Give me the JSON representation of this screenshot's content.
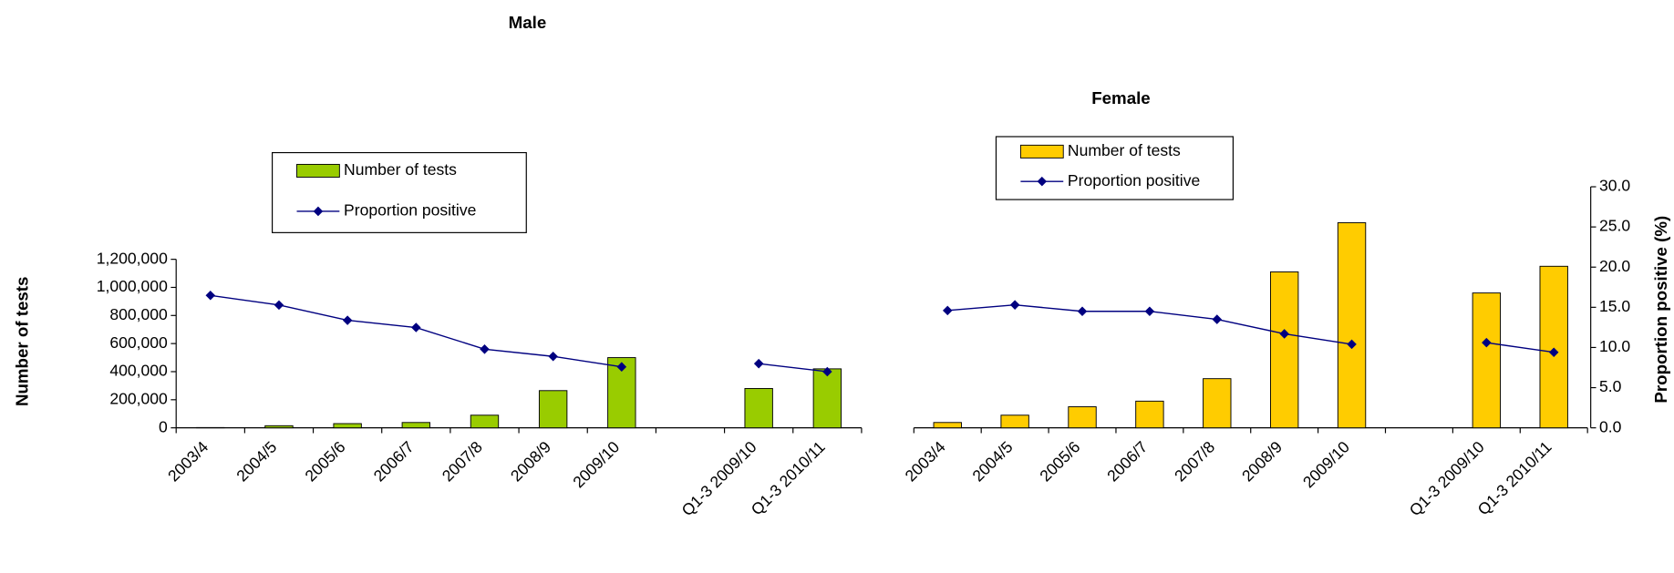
{
  "chart_data": [
    {
      "type": "bar",
      "title": "Male",
      "y_label": "Number of tests",
      "categories": [
        "2003/4",
        "2004/5",
        "2005/6",
        "2006/7",
        "2007/8",
        "2008/9",
        "2009/10",
        null,
        "Q1-3 2009/10",
        "Q1-3 2010/11"
      ],
      "series": [
        {
          "name": "Number of tests",
          "color": "#99cc00",
          "values": [
            2000,
            15000,
            30000,
            38000,
            90000,
            265000,
            500000,
            null,
            280000,
            420000
          ]
        },
        {
          "name": "Proportion positive",
          "color": "#000080",
          "axis": "y2",
          "values": [
            16.5,
            15.3,
            13.4,
            12.5,
            9.8,
            8.9,
            7.6,
            null,
            8.0,
            7.0
          ]
        }
      ],
      "ylim": [
        0,
        1200000
      ],
      "yticks": [
        0,
        {
          "value": 200000,
          "label": "200,000"
        },
        {
          "value": 400000,
          "label": "400,000"
        },
        {
          "value": 600000,
          "label": "600,000"
        },
        {
          "value": 800000,
          "label": "800,000"
        },
        {
          "value": 1000000,
          "label": "1,000,000"
        },
        {
          "value": 1200000,
          "label": "1,200,000"
        }
      ],
      "y2lim": [
        0,
        21
      ]
    },
    {
      "type": "bar",
      "title": "Female",
      "y2_label": "Proportion positive (%)",
      "categories": [
        "2003/4",
        "2004/5",
        "2005/6",
        "2006/7",
        "2007/8",
        "2008/9",
        "2009/10",
        null,
        "Q1-3 2009/10",
        "Q1-3 2010/11"
      ],
      "series": [
        {
          "name": "Number of tests",
          "color": "#ffcc00",
          "values": [
            38000,
            90000,
            150000,
            190000,
            350000,
            1110000,
            1460000,
            null,
            960000,
            1150000
          ]
        },
        {
          "name": "Proportion positive",
          "color": "#000080",
          "axis": "y2",
          "values": [
            14.6,
            15.3,
            14.5,
            14.5,
            13.5,
            11.7,
            10.4,
            null,
            10.6,
            9.4
          ]
        }
      ],
      "ylim": [
        0,
        1716000
      ],
      "y2lim": [
        0,
        30
      ],
      "y2ticks": [
        {
          "value": 0,
          "label": "0.0"
        },
        {
          "value": 5,
          "label": "5.0"
        },
        {
          "value": 10,
          "label": "10.0"
        },
        {
          "value": 15,
          "label": "15.0"
        },
        {
          "value": 20,
          "label": "20.0"
        },
        {
          "value": 25,
          "label": "25.0"
        },
        {
          "value": 30,
          "label": "30.0"
        }
      ]
    }
  ]
}
